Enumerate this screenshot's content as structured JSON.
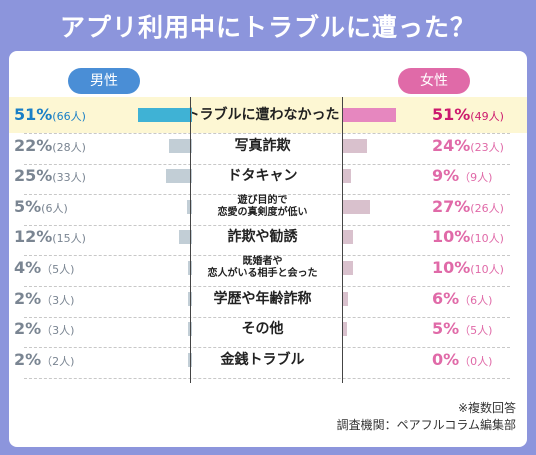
{
  "chart_data": {
    "type": "bar",
    "title": "アプリ利用中にトラブルに遭った？",
    "categories": [
      "トラブルに遭わなかった",
      "写真詐欺",
      "ドタキャン",
      "遊び目的で\n恋愛の真剣度が低い",
      "詐欺や勧誘",
      "既婚者や\n恋人がいる相手と会った",
      "学歴や年齢詐称",
      "その他",
      "金銭トラブル"
    ],
    "series": [
      {
        "name": "男性",
        "values": [
          51,
          22,
          25,
          5,
          12,
          4,
          2,
          2,
          2
        ],
        "counts": [
          66,
          28,
          33,
          6,
          15,
          5,
          3,
          3,
          2
        ],
        "labels": [
          "51%(66人)",
          "22%(28人)",
          "25%(33人)",
          "5%(6人)",
          "12%(15人)",
          "4%（5人)",
          "2%（3人)",
          "2%（3人)",
          "2%（2人)"
        ]
      },
      {
        "name": "女性",
        "values": [
          51,
          24,
          9,
          27,
          10,
          10,
          6,
          5,
          0
        ],
        "counts": [
          49,
          23,
          9,
          26,
          10,
          10,
          6,
          5,
          0
        ],
        "labels": [
          "51%(49人)",
          "24%(23人)",
          "9%（9人)",
          "27%(26人)",
          "10%(10人)",
          "10%(10人)",
          "6%（6人)",
          "5%（5人)",
          "0%（0人)"
        ]
      }
    ],
    "highlight_index": 0,
    "note": "※複数回答",
    "source": "調査機関：ペアフルコラム編集部",
    "colors": {
      "background": "#8c95dc",
      "male_accent": "#4a8ed6",
      "female_accent": "#e06aa8"
    }
  }
}
